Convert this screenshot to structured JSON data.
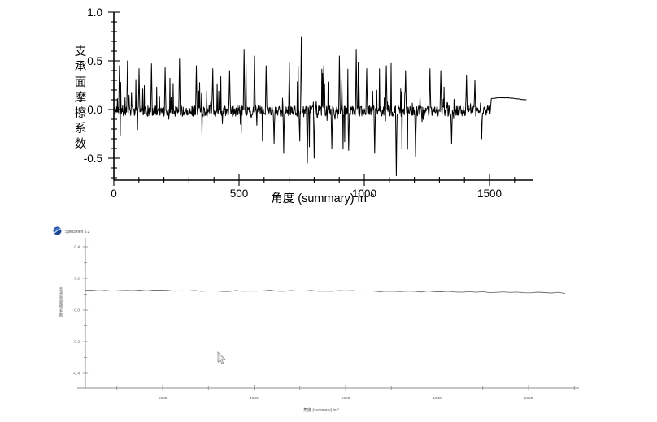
{
  "page": {
    "background": "#ffffff"
  },
  "chart_data": [
    {
      "type": "line",
      "title": "",
      "xlabel": "角度 (summary) in °",
      "ylabel": "支承面摩擦系数",
      "xlim": [
        0,
        1675
      ],
      "ylim": [
        -0.725,
        1.0
      ],
      "xticks": [
        0,
        500,
        1000,
        1500
      ],
      "xtick_labels": [
        "0",
        "500",
        "1000",
        "1500"
      ],
      "xminor_step": 100,
      "yticks": [
        1.0,
        0.5,
        0.0,
        -0.5
      ],
      "ytick_labels": [
        "1.0",
        "0.5",
        "0.0",
        "-0.5"
      ],
      "yminor_step": 0.1,
      "grid": false,
      "legend": null,
      "line_color": "#000000",
      "axis_color": "#000000",
      "label_color": "#000000",
      "signal": {
        "kind": "noisy-friction",
        "seed": 11,
        "step": 1.6,
        "noise_band": 0.055,
        "burst_prob": 0.17,
        "mean_offset": -0.015,
        "x_noise_end": 1505,
        "x_end": 1648,
        "envelope": [
          [
            0,
            0.34
          ],
          [
            40,
            0.5
          ],
          [
            80,
            0.42
          ],
          [
            200,
            0.46
          ],
          [
            300,
            0.5
          ],
          [
            420,
            0.42
          ],
          [
            500,
            0.55
          ],
          [
            620,
            0.5
          ],
          [
            750,
            0.6
          ],
          [
            850,
            0.5
          ],
          [
            950,
            0.6
          ],
          [
            1050,
            0.52
          ],
          [
            1150,
            0.5
          ],
          [
            1250,
            0.45
          ],
          [
            1350,
            0.38
          ],
          [
            1430,
            0.3
          ],
          [
            1480,
            0.16
          ],
          [
            1505,
            0.05
          ]
        ],
        "spikes": [
          [
            22,
            0.45
          ],
          [
            55,
            0.5
          ],
          [
            100,
            0.42
          ],
          [
            150,
            0.47
          ],
          [
            205,
            0.43
          ],
          [
            262,
            0.52
          ],
          [
            330,
            0.45
          ],
          [
            395,
            0.42
          ],
          [
            462,
            0.4
          ],
          [
            520,
            0.62
          ],
          [
            562,
            0.55
          ],
          [
            608,
            0.45
          ],
          [
            640,
            -0.35
          ],
          [
            678,
            -0.45
          ],
          [
            700,
            0.48
          ],
          [
            748,
            0.75
          ],
          [
            772,
            -0.55
          ],
          [
            800,
            -0.5
          ],
          [
            838,
            0.45
          ],
          [
            870,
            -0.4
          ],
          [
            900,
            0.55
          ],
          [
            938,
            -0.42
          ],
          [
            968,
            0.62
          ],
          [
            1010,
            0.42
          ],
          [
            1042,
            -0.45
          ],
          [
            1088,
            0.45
          ],
          [
            1128,
            -0.68
          ],
          [
            1165,
            0.4
          ],
          [
            1205,
            -0.48
          ],
          [
            1262,
            0.42
          ],
          [
            1305,
            0.4
          ],
          [
            1348,
            -0.35
          ],
          [
            1408,
            0.35
          ],
          [
            1442,
            0.3
          ],
          [
            1468,
            -0.3
          ]
        ],
        "tail": [
          [
            1505,
            0.112
          ],
          [
            1540,
            0.122
          ],
          [
            1575,
            0.12
          ],
          [
            1605,
            0.112
          ],
          [
            1630,
            0.103
          ],
          [
            1648,
            0.1
          ]
        ]
      }
    },
    {
      "type": "line",
      "title": "",
      "legend": {
        "label": "Specimen 5.2",
        "icon": "specimen-sphere-icon",
        "icon_colors": [
          "#1c4792",
          "#3f76cc"
        ]
      },
      "xlabel": "角度 (summary) in °",
      "ylabel": "支承面摩擦系数",
      "xlim": [
        1558,
        1671
      ],
      "ylim": [
        -0.52,
        0.52
      ],
      "xticks": [
        1580,
        1600,
        1620,
        1640,
        1660
      ],
      "xtick_labels": [
        "1580",
        "1600",
        "1620",
        "1640",
        "1660"
      ],
      "xminor_step": 10,
      "yticks": [
        0.4,
        0.2,
        0.0,
        -0.2,
        -0.4
      ],
      "ytick_labels": [
        "0.4",
        "0.2",
        "0.0",
        "-0.2",
        "-0.4"
      ],
      "yminor_step": 0.1,
      "grid": false,
      "line_color": "#6e6e6e",
      "axis_color": "#8c8c8c",
      "label_color": "#555555",
      "signal": {
        "kind": "smooth-tail",
        "seed": 5,
        "step": 1.5,
        "wiggle": 0.007,
        "points": [
          [
            1563,
            0.125
          ],
          [
            1570,
            0.122
          ],
          [
            1580,
            0.124
          ],
          [
            1590,
            0.119
          ],
          [
            1600,
            0.122
          ],
          [
            1610,
            0.121
          ],
          [
            1620,
            0.12
          ],
          [
            1630,
            0.118
          ],
          [
            1640,
            0.117
          ],
          [
            1650,
            0.113
          ],
          [
            1660,
            0.112
          ],
          [
            1668,
            0.108
          ]
        ]
      }
    }
  ]
}
